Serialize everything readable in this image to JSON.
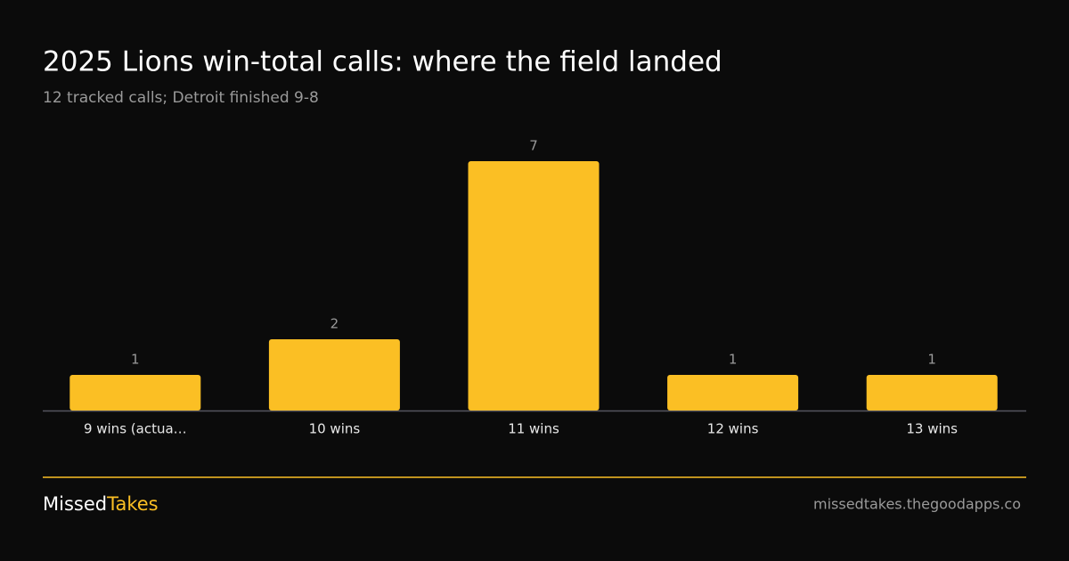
{
  "chart_data": {
    "type": "bar",
    "title": "2025 Lions win-total calls: where the field landed",
    "subtitle": "12 tracked calls; Detroit finished 9-8",
    "categories": [
      "9 wins (actua…",
      "10 wins",
      "11 wins",
      "12 wins",
      "13 wins"
    ],
    "values": [
      1,
      2,
      7,
      1,
      1
    ],
    "color": "#fbbf24"
  },
  "footer": {
    "brand_first": "Missed",
    "brand_second": "Takes",
    "url": "missedtakes.thegoodapps.co"
  }
}
